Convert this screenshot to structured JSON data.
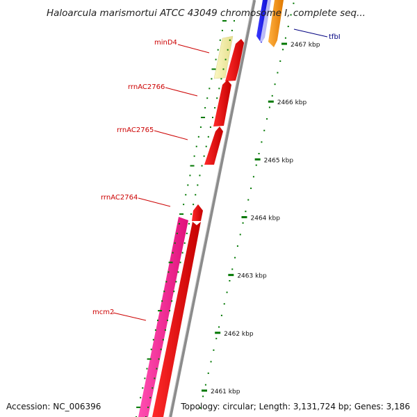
{
  "title": "Haloarcula marismortui ATCC 43049 chromosome I, complete seq...",
  "accession": "Accession: NC_006396",
  "topology": "Topology: circular; Length: 3,131,724 bp; Genes: 3,186",
  "ruler": {
    "unit": "kbp",
    "ticks": [
      {
        "value": 2467,
        "label": "2467 kbp"
      },
      {
        "value": 2466,
        "label": "2466 kbp"
      },
      {
        "value": 2465,
        "label": "2465 kbp"
      },
      {
        "value": 2464,
        "label": "2464 kbp"
      },
      {
        "value": 2463,
        "label": "2463 kbp"
      },
      {
        "value": 2462,
        "label": "2462 kbp"
      },
      {
        "value": 2461,
        "label": "2461 kbp"
      }
    ]
  },
  "genes": [
    {
      "name": "tfbI",
      "label_color": "#000080",
      "feature_color": "#2020f0"
    },
    {
      "name": "minD4",
      "label_color": "#cc0000",
      "feature_color": "#f5f0a0"
    },
    {
      "name": "rrnAC2766",
      "label_color": "#cc0000",
      "feature_color": "#ff0000"
    },
    {
      "name": "rrnAC2765",
      "label_color": "#cc0000",
      "feature_color": "#ff0000"
    },
    {
      "name": "rrnAC2764",
      "label_color": "#cc0000",
      "feature_color": "#ff0000"
    },
    {
      "name": "mcm2",
      "label_color": "#cc0000",
      "feature_color": "#ff1493"
    }
  ],
  "colors": {
    "backbone": "#999999",
    "cds_forward": "#ff0000",
    "orange_feature": "#ff8c00",
    "tick_mark": "#007700",
    "gene_label_red": "#cc0000",
    "gene_label_blue": "#000080"
  }
}
